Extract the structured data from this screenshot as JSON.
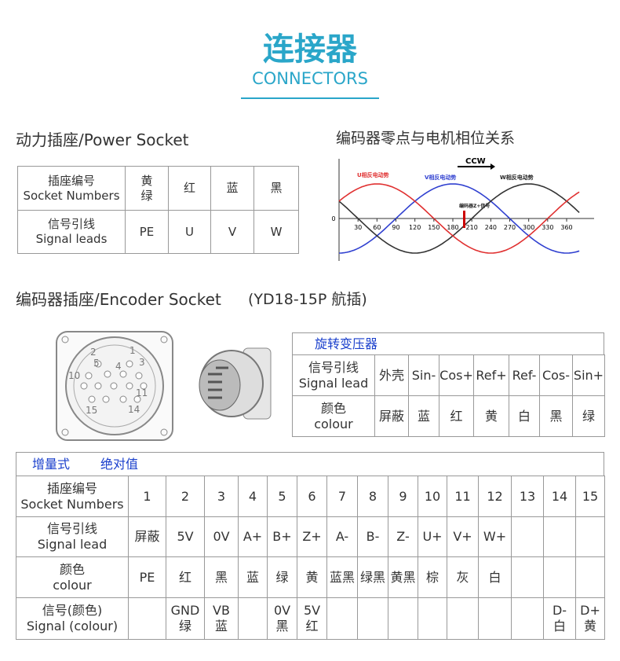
{
  "header": {
    "title": "连接器",
    "subtitle": "CONNECTORS"
  },
  "power": {
    "title": "动力插座/Power Socket",
    "rows": [
      [
        "插座编号\nSocket Numbers",
        "黄\n绿",
        "红",
        "蓝",
        "黑"
      ],
      [
        "信号引线\nSignal leads",
        "PE",
        "U",
        "V",
        "W"
      ]
    ]
  },
  "phase_chart": {
    "title": "编码器零点与电机相位关系",
    "direction": "CCW",
    "origin_label": "0",
    "xticks": [
      30,
      60,
      90,
      120,
      150,
      180,
      210,
      240,
      270,
      300,
      330,
      360
    ],
    "labels": [
      "U相反电动势",
      "V相反电动势",
      "W相反电动势",
      "编码器Z+信号"
    ]
  },
  "encoder": {
    "title": "编码器插座/Encoder Socket",
    "model": "(YD18-15P 航插)",
    "pins": [
      "1",
      "2",
      "3",
      "4",
      "5",
      "10",
      "11",
      "14",
      "15"
    ]
  },
  "resolver": {
    "header": "旋转变压器",
    "rows": [
      [
        "信号引线\nSignal lead",
        "外壳",
        "Sin-",
        "Cos+",
        "Ref+",
        "Ref-",
        "Cos-",
        "Sin+"
      ],
      [
        "颜色\ncolour",
        "屏蔽",
        "蓝",
        "红",
        "黄",
        "白",
        "黑",
        "绿"
      ]
    ]
  },
  "encoder_table": {
    "headers": [
      "增量式",
      "绝对值"
    ],
    "rows": [
      [
        "插座编号\nSocket Numbers",
        "1",
        "2",
        "3",
        "4",
        "5",
        "6",
        "7",
        "8",
        "9",
        "10",
        "11",
        "12",
        "13",
        "14",
        "15"
      ],
      [
        "信号引线\nSignal lead",
        "屏蔽",
        "5V",
        "0V",
        "A+",
        "B+",
        "Z+",
        "A-",
        "B-",
        "Z-",
        "U+",
        "V+",
        "W+",
        null,
        null,
        null
      ],
      [
        "颜色\ncolour",
        "PE",
        "红",
        "黑",
        "蓝",
        "绿",
        "黄",
        "蓝黑",
        "绿黑",
        "黄黑",
        "棕",
        "灰",
        "白",
        null,
        null,
        null
      ],
      [
        "信号(颜色)\nSignal (colour)",
        null,
        "GND\n绿",
        "VB\n蓝",
        null,
        "0V\n黑",
        "5V\n红",
        null,
        null,
        null,
        null,
        null,
        null,
        null,
        "D-\n白",
        "D+\n黄"
      ]
    ]
  }
}
